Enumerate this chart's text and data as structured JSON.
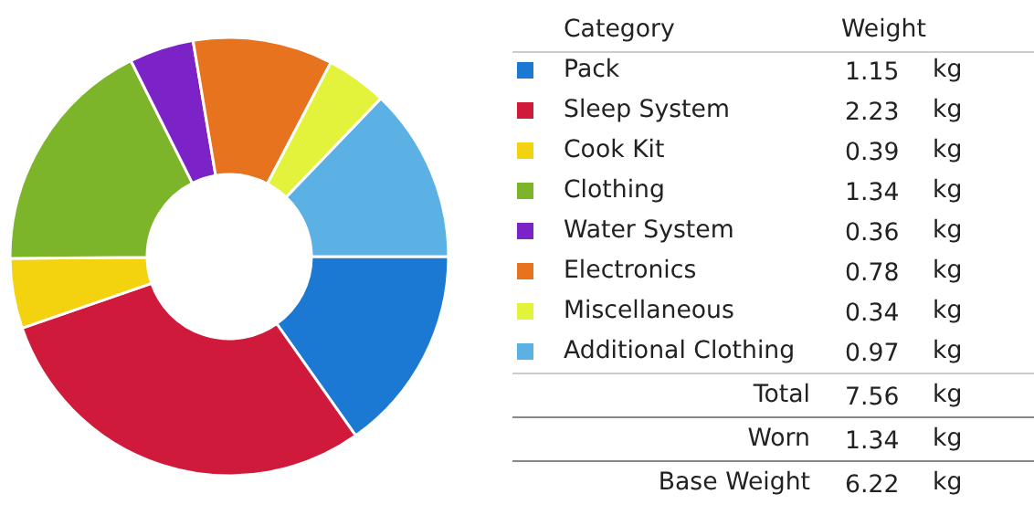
{
  "chart_data": {
    "type": "donut",
    "legend_title": "Category",
    "categories": [
      "Pack",
      "Sleep System",
      "Cook Kit",
      "Clothing",
      "Water System",
      "Electronics",
      "Miscellaneous",
      "Additional Clothing"
    ],
    "values": [
      1.15,
      2.23,
      0.39,
      1.34,
      0.36,
      0.78,
      0.34,
      0.97
    ],
    "colors": [
      "#1b78d3",
      "#cf1a3b",
      "#f3d20f",
      "#7db52a",
      "#7b23c6",
      "#e8731f",
      "#e3f23b",
      "#5bb0e4"
    ],
    "data_labels": true,
    "legend": "right",
    "annotations": [
      "Weight",
      "kg",
      "Total",
      "7.56",
      "Worn",
      "1.34",
      "Base Weight",
      "6.22"
    ]
  }
}
